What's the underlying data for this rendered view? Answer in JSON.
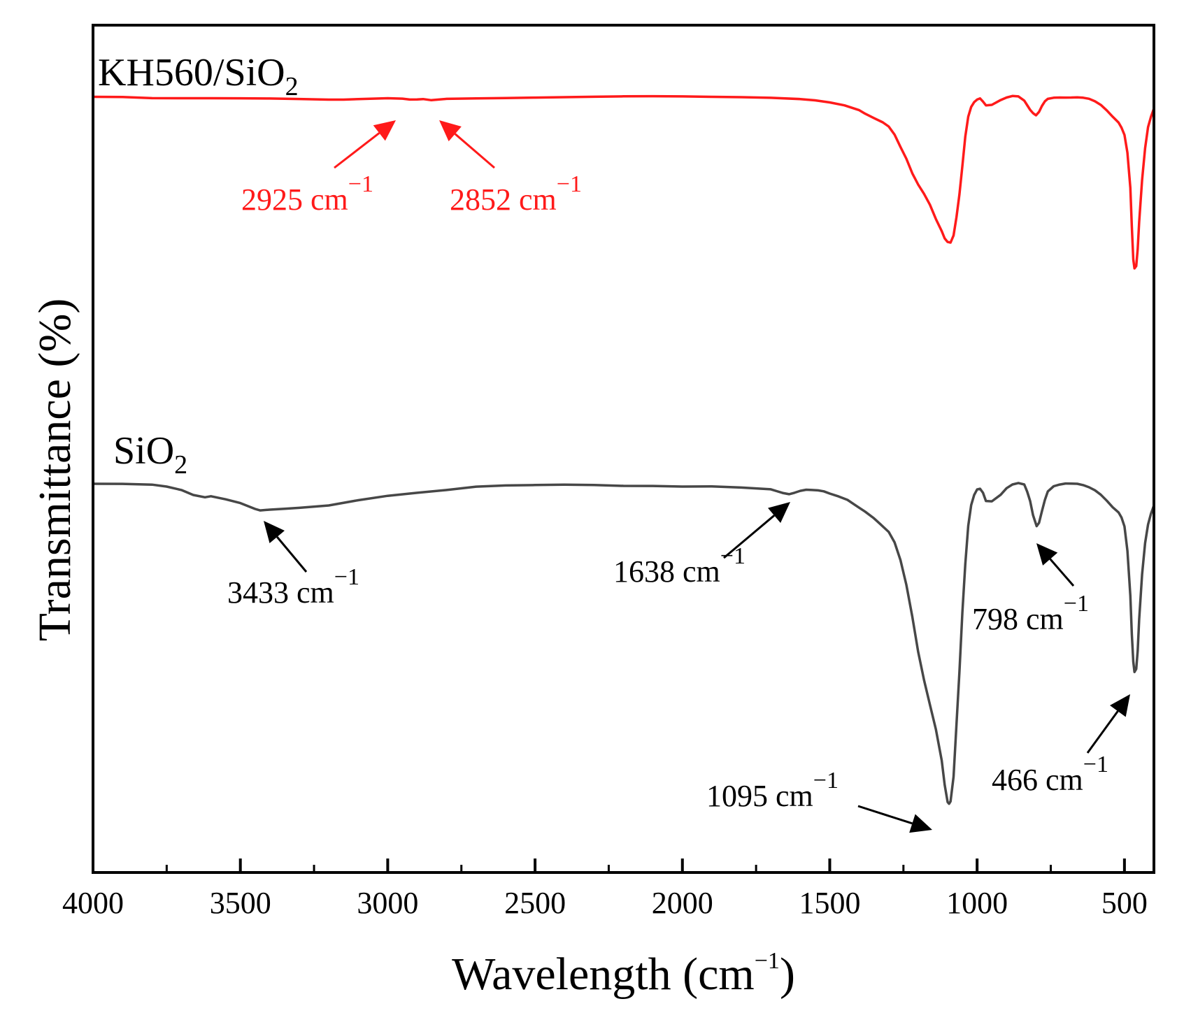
{
  "chart_data": {
    "type": "line",
    "xlabel": "Wavelength (cm",
    "xlabel_sup": "−1",
    "xlabel_close": ")",
    "ylabel": "Transmittance (%)",
    "xlim": [
      4000,
      400
    ],
    "x_ticks": [
      4000,
      3500,
      3000,
      2500,
      2000,
      1500,
      1000,
      500
    ],
    "y_ticks_shown": false,
    "series": [
      {
        "name": "KH560/SiO",
        "name_sub": "2",
        "color": "#ff1a1a",
        "x": [
          4000,
          3900,
          3800,
          3700,
          3600,
          3500,
          3400,
          3300,
          3200,
          3150,
          3100,
          3000,
          2950,
          2925,
          2900,
          2880,
          2852,
          2800,
          2700,
          2600,
          2500,
          2400,
          2300,
          2200,
          2100,
          2000,
          1900,
          1800,
          1700,
          1600,
          1550,
          1500,
          1450,
          1400,
          1380,
          1350,
          1320,
          1300,
          1280,
          1260,
          1240,
          1220,
          1200,
          1180,
          1160,
          1140,
          1120,
          1110,
          1100,
          1090,
          1080,
          1070,
          1060,
          1050,
          1040,
          1030,
          1020,
          1010,
          1000,
          990,
          980,
          970,
          950,
          920,
          900,
          880,
          860,
          840,
          830,
          820,
          810,
          800,
          790,
          780,
          770,
          760,
          740,
          720,
          700,
          680,
          660,
          640,
          620,
          600,
          580,
          560,
          540,
          520,
          510,
          500,
          490,
          480,
          475,
          470,
          466,
          460,
          455,
          450,
          440,
          430,
          420,
          410,
          400
        ],
        "y": [
          0.5,
          0.3,
          1.6,
          1.4,
          1.4,
          1.7,
          2.3,
          3.4,
          4.8,
          5.2,
          4.7,
          3.6,
          4.1,
          5.2,
          4.6,
          3.6,
          4.8,
          2.5,
          1.6,
          1.1,
          0.7,
          0.4,
          0.3,
          0.1,
          0.3,
          0.9,
          1.6,
          2.0,
          2.6,
          4.0,
          5.4,
          7.9,
          11.8,
          18.5,
          23.5,
          30.0,
          36.5,
          43.0,
          55.0,
          73.0,
          90.0,
          111.0,
          127.0,
          140.0,
          155.0,
          175.0,
          192.0,
          202.0,
          207.0,
          208.0,
          198.0,
          172.0,
          140.0,
          100.0,
          58.0,
          30.0,
          16.0,
          9.0,
          5.0,
          3.0,
          7.0,
          12.0,
          11.0,
          4.0,
          0.5,
          -1.5,
          -0.5,
          6.0,
          13.0,
          20.0,
          25.0,
          28.0,
          23.0,
          14.0,
          7.0,
          3.0,
          1.0,
          0.5,
          0.5,
          0.5,
          0.5,
          1.5,
          3.5,
          7.5,
          13.0,
          21.0,
          30.0,
          38.0,
          45.0,
          55.0,
          80.0,
          130.0,
          185.0,
          232.0,
          245.0,
          242.0,
          218.0,
          180.0,
          120.0,
          75.0,
          45.0,
          30.0,
          18.0
        ]
      },
      {
        "name": "SiO",
        "name_sub": "2",
        "color": "#474747",
        "x": [
          4000,
          3900,
          3800,
          3750,
          3700,
          3660,
          3620,
          3600,
          3550,
          3500,
          3450,
          3433,
          3400,
          3350,
          3300,
          3200,
          3100,
          3000,
          2900,
          2800,
          2700,
          2600,
          2500,
          2400,
          2300,
          2200,
          2100,
          2000,
          1900,
          1800,
          1700,
          1680,
          1660,
          1638,
          1620,
          1600,
          1580,
          1560,
          1540,
          1520,
          1500,
          1470,
          1440,
          1420,
          1400,
          1380,
          1350,
          1330,
          1300,
          1280,
          1260,
          1240,
          1220,
          1200,
          1180,
          1160,
          1140,
          1120,
          1110,
          1100,
          1095,
          1090,
          1080,
          1070,
          1060,
          1050,
          1040,
          1030,
          1020,
          1010,
          1000,
          990,
          980,
          970,
          950,
          920,
          900,
          880,
          860,
          840,
          830,
          820,
          810,
          798,
          790,
          780,
          770,
          760,
          740,
          720,
          700,
          680,
          660,
          640,
          620,
          600,
          580,
          560,
          540,
          520,
          510,
          500,
          490,
          480,
          475,
          470,
          466,
          460,
          455,
          450,
          440,
          430,
          420,
          410,
          400
        ],
        "y": [
          0.0,
          0.5,
          2.0,
          5.0,
          10.0,
          17.0,
          20.0,
          18.0,
          22.0,
          27.0,
          35.0,
          37.0,
          36.0,
          35.0,
          34.0,
          31.0,
          24.0,
          18.0,
          14.0,
          10.0,
          5.0,
          3.0,
          2.0,
          1.0,
          1.0,
          2.0,
          2.0,
          3.0,
          3.0,
          5.0,
          8.0,
          11.0,
          14.0,
          16.0,
          14.0,
          11.0,
          9.0,
          9.0,
          9.0,
          10.0,
          13.0,
          17.0,
          22.0,
          28.0,
          34.0,
          40.0,
          50.0,
          58.0,
          70.0,
          85.0,
          110.0,
          145.0,
          190.0,
          240.0,
          280.0,
          315.0,
          350.0,
          395.0,
          430.0,
          455.0,
          458.0,
          455.0,
          420.0,
          345.0,
          270.0,
          185.0,
          115.0,
          60.0,
          30.0,
          15.0,
          7.0,
          6.0,
          12.0,
          24.0,
          25.0,
          16.0,
          7.0,
          2.0,
          0.0,
          2.0,
          12.0,
          25.0,
          45.0,
          60.0,
          55.0,
          38.0,
          22.0,
          10.0,
          3.0,
          1.0,
          0.0,
          0.5,
          1.0,
          3.0,
          6.0,
          10.0,
          16.0,
          24.0,
          33.0,
          40.0,
          47.0,
          60.0,
          95.0,
          160.0,
          215.0,
          255.0,
          270.0,
          266.0,
          240.0,
          195.0,
          130.0,
          85.0,
          58.0,
          42.0,
          30.0
        ]
      }
    ],
    "annotations": [
      {
        "series": 0,
        "x": 2925,
        "label": "2925 cm",
        "sup": "−1"
      },
      {
        "series": 0,
        "x": 2852,
        "label": "2852 cm",
        "sup": "−1"
      },
      {
        "series": 1,
        "x": 3433,
        "label": "3433 cm",
        "sup": "−1"
      },
      {
        "series": 1,
        "x": 1638,
        "label": "1638 cm",
        "sup": "−1"
      },
      {
        "series": 1,
        "x": 798,
        "label": "798 cm",
        "sup": "−1"
      },
      {
        "series": 1,
        "x": 1095,
        "label": "1095 cm",
        "sup": "−1"
      },
      {
        "series": 1,
        "x": 466,
        "label": "466 cm",
        "sup": "−1"
      }
    ]
  }
}
